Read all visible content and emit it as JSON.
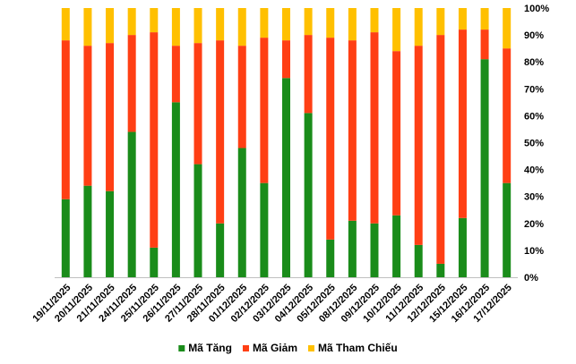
{
  "chart_data": {
    "type": "bar",
    "stacked": true,
    "stack_mode": "percent",
    "categories": [
      "19/11/2025",
      "20/11/2025",
      "21/11/2025",
      "24/11/2025",
      "25/11/2025",
      "26/11/2025",
      "27/11/2025",
      "28/11/2025",
      "01/12/2025",
      "02/12/2025",
      "03/12/2025",
      "04/12/2025",
      "05/12/2025",
      "08/12/2025",
      "09/12/2025",
      "10/12/2025",
      "11/12/2025",
      "12/12/2025",
      "15/12/2025",
      "16/12/2025",
      "17/12/2025"
    ],
    "series": [
      {
        "name": "Mã Tăng",
        "color": "#1a8c1a",
        "values": [
          29,
          34,
          32,
          54,
          11,
          65,
          42,
          20,
          48,
          35,
          74,
          61,
          14,
          21,
          20,
          23,
          12,
          5,
          22,
          81,
          35
        ]
      },
      {
        "name": "Mã Giảm",
        "color": "#ff3f14",
        "values": [
          59,
          52,
          55,
          36,
          80,
          21,
          45,
          68,
          38,
          54,
          14,
          29,
          75,
          67,
          71,
          61,
          74,
          85,
          70,
          11,
          50
        ]
      },
      {
        "name": "Mã Tham Chiếu",
        "color": "#ffc000",
        "values": [
          12,
          14,
          13,
          10,
          9,
          14,
          13,
          12,
          14,
          11,
          12,
          10,
          11,
          12,
          9,
          16,
          14,
          10,
          8,
          8,
          15
        ]
      }
    ],
    "yticks": [
      "0%",
      "10%",
      "20%",
      "30%",
      "40%",
      "50%",
      "60%",
      "70%",
      "80%",
      "90%",
      "100%"
    ],
    "ylim": [
      0,
      100
    ],
    "y_axis_position": "right",
    "grid": false,
    "legend_position": "bottom",
    "title": "",
    "xlabel": "",
    "ylabel": ""
  }
}
